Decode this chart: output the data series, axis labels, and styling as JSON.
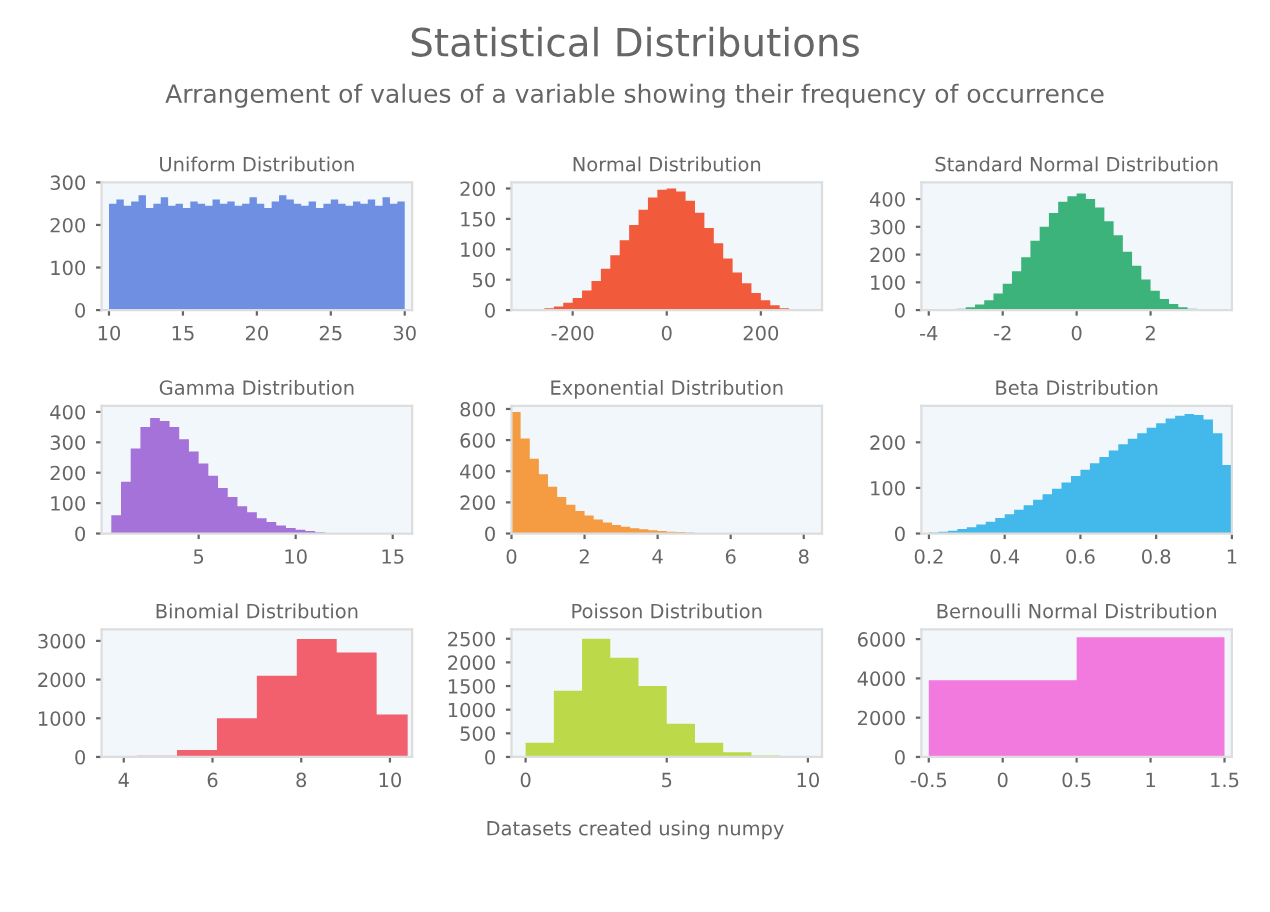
{
  "chart_data": [
    {
      "type": "other",
      "title": "Statistical Distributions",
      "subtitle": "Arrangement of values of a variable showing their frequency of occurrence",
      "annotations": [
        "Datasets created using numpy"
      ]
    },
    {
      "type": "histogram",
      "title": "Uniform Distribution",
      "color": "#6f8fe3",
      "xlim": [
        9.5,
        30.5
      ],
      "xticks": [
        10,
        15,
        20,
        25,
        30
      ],
      "ylim": [
        0,
        300
      ],
      "yticks": [
        0,
        100,
        200,
        300
      ],
      "bins": [
        10,
        10.5,
        11,
        11.5,
        12,
        12.5,
        13,
        13.5,
        14,
        14.5,
        15,
        15.5,
        16,
        16.5,
        17,
        17.5,
        18,
        18.5,
        19,
        19.5,
        20,
        20.5,
        21,
        21.5,
        22,
        22.5,
        23,
        23.5,
        24,
        24.5,
        25,
        25.5,
        26,
        26.5,
        27,
        27.5,
        28,
        28.5,
        29,
        29.5,
        30
      ],
      "values": [
        250,
        260,
        245,
        255,
        270,
        240,
        250,
        265,
        245,
        250,
        240,
        255,
        250,
        245,
        260,
        250,
        255,
        245,
        250,
        265,
        250,
        240,
        255,
        270,
        260,
        250,
        245,
        255,
        240,
        250,
        260,
        250,
        245,
        255,
        250,
        260,
        245,
        265,
        250,
        255
      ]
    },
    {
      "type": "histogram",
      "title": "Normal Distribution",
      "color": "#f25a3c",
      "xlim": [
        -330,
        330
      ],
      "xticks": [
        -200,
        0,
        200
      ],
      "ylim": [
        0,
        210
      ],
      "yticks": [
        0,
        50,
        100,
        150,
        200
      ],
      "bins": [
        -260,
        -240,
        -220,
        -200,
        -180,
        -160,
        -140,
        -120,
        -100,
        -80,
        -60,
        -40,
        -20,
        0,
        20,
        40,
        60,
        80,
        100,
        120,
        140,
        160,
        180,
        200,
        220,
        240,
        260
      ],
      "values": [
        3,
        6,
        12,
        20,
        32,
        48,
        68,
        90,
        115,
        140,
        165,
        185,
        198,
        200,
        195,
        180,
        160,
        135,
        110,
        85,
        62,
        44,
        28,
        16,
        8,
        3
      ]
    },
    {
      "type": "histogram",
      "title": "Standard Normal Distribution",
      "color": "#3db37c",
      "xlim": [
        -4.2,
        4.2
      ],
      "xticks": [
        -4,
        -2,
        0,
        2
      ],
      "ylim": [
        0,
        460
      ],
      "yticks": [
        0,
        100,
        200,
        300,
        400
      ],
      "bins": [
        -3.25,
        -3,
        -2.75,
        -2.5,
        -2.25,
        -2,
        -1.75,
        -1.5,
        -1.25,
        -1,
        -0.75,
        -0.5,
        -0.25,
        0,
        0.25,
        0.5,
        0.75,
        1,
        1.25,
        1.5,
        1.75,
        2,
        2.25,
        2.5,
        2.75,
        3,
        3.25
      ],
      "values": [
        5,
        10,
        20,
        35,
        60,
        95,
        140,
        190,
        250,
        300,
        350,
        390,
        410,
        420,
        400,
        370,
        320,
        270,
        210,
        160,
        110,
        70,
        40,
        22,
        10,
        5
      ]
    },
    {
      "type": "histogram",
      "title": "Gamma Distribution",
      "color": "#a472d9",
      "xlim": [
        0,
        16
      ],
      "xticks": [
        5,
        10,
        15
      ],
      "ylim": [
        0,
        420
      ],
      "yticks": [
        0,
        100,
        200,
        300,
        400
      ],
      "bins": [
        0.5,
        1,
        1.5,
        2,
        2.5,
        3,
        3.5,
        4,
        4.5,
        5,
        5.5,
        6,
        6.5,
        7,
        7.5,
        8,
        8.5,
        9,
        9.5,
        10,
        10.5,
        11,
        11.5
      ],
      "values": [
        60,
        170,
        280,
        350,
        380,
        370,
        350,
        310,
        270,
        230,
        190,
        150,
        120,
        90,
        70,
        50,
        38,
        26,
        18,
        12,
        8,
        4
      ]
    },
    {
      "type": "histogram",
      "title": "Exponential Distribution",
      "color": "#f59c42",
      "xlim": [
        0,
        8.5
      ],
      "xticks": [
        0,
        2,
        4,
        6,
        8
      ],
      "ylim": [
        0,
        820
      ],
      "yticks": [
        0,
        200,
        400,
        600,
        800
      ],
      "bins": [
        0,
        0.25,
        0.5,
        0.75,
        1,
        1.25,
        1.5,
        1.75,
        2,
        2.25,
        2.5,
        2.75,
        3,
        3.25,
        3.5,
        3.75,
        4,
        4.25,
        4.5,
        4.75,
        5
      ],
      "values": [
        780,
        610,
        480,
        380,
        300,
        235,
        185,
        145,
        115,
        90,
        70,
        55,
        43,
        34,
        27,
        21,
        16,
        12,
        9,
        6
      ]
    },
    {
      "type": "histogram",
      "title": "Beta Distribution",
      "color": "#42b9ea",
      "xlim": [
        0.18,
        1.0
      ],
      "xticks": [
        0.2,
        0.4,
        0.6,
        0.8,
        1
      ],
      "ylim": [
        0,
        280
      ],
      "yticks": [
        0,
        100,
        200
      ],
      "bins": [
        0.2,
        0.225,
        0.25,
        0.275,
        0.3,
        0.325,
        0.35,
        0.375,
        0.4,
        0.425,
        0.45,
        0.475,
        0.5,
        0.525,
        0.55,
        0.575,
        0.6,
        0.625,
        0.65,
        0.675,
        0.7,
        0.725,
        0.75,
        0.775,
        0.8,
        0.825,
        0.85,
        0.875,
        0.9,
        0.925,
        0.95,
        0.975,
        1.0
      ],
      "values": [
        2,
        4,
        6,
        10,
        14,
        20,
        26,
        34,
        42,
        52,
        62,
        74,
        86,
        98,
        112,
        126,
        140,
        154,
        168,
        182,
        196,
        208,
        220,
        232,
        242,
        252,
        258,
        262,
        260,
        250,
        220,
        150
      ]
    },
    {
      "type": "histogram",
      "title": "Binomial Distribution",
      "color": "#f2606e",
      "xlim": [
        3.5,
        10.5
      ],
      "xticks": [
        4,
        6,
        8,
        10
      ],
      "ylim": [
        0,
        3300
      ],
      "yticks": [
        0,
        1000,
        2000,
        3000
      ],
      "bins": [
        4.3,
        5.2,
        6.1,
        7,
        7.9,
        8.8,
        9.7,
        10.4
      ],
      "values": [
        30,
        180,
        1000,
        2100,
        3050,
        2700,
        1100
      ]
    },
    {
      "type": "histogram",
      "title": "Poisson Distribution",
      "color": "#bcd94a",
      "xlim": [
        -0.5,
        10.5
      ],
      "xticks": [
        0,
        5,
        10
      ],
      "ylim": [
        0,
        2700
      ],
      "yticks": [
        0,
        500,
        1000,
        1500,
        2000,
        2500
      ],
      "bins": [
        0,
        1,
        2,
        3,
        4,
        5,
        6,
        7,
        8,
        9
      ],
      "values": [
        300,
        1400,
        2500,
        2100,
        1500,
        700,
        300,
        100,
        30
      ]
    },
    {
      "type": "histogram",
      "title": "Bernoulli Normal Distribution",
      "color": "#f27ade",
      "xlim": [
        -0.55,
        1.55
      ],
      "xticks": [
        -0.5,
        0,
        0.5,
        1,
        1.5
      ],
      "ylim": [
        0,
        6500
      ],
      "yticks": [
        0,
        2000,
        4000,
        6000
      ],
      "bins": [
        -0.5,
        0.5,
        1.5
      ],
      "values": [
        3900,
        6100
      ]
    }
  ]
}
